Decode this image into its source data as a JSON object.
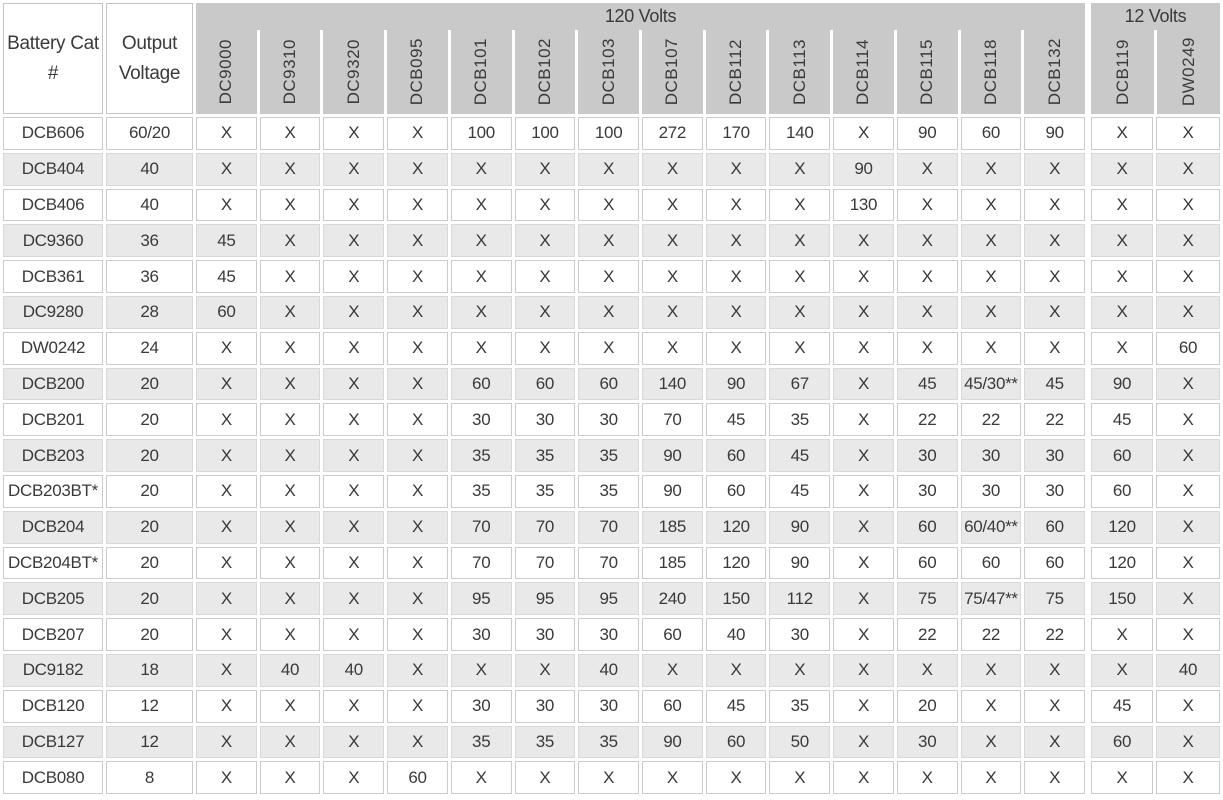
{
  "header": {
    "col1": "Battery Cat #",
    "col2": "Output Voltage",
    "groups": [
      {
        "label": "120 Volts",
        "columns": [
          "DC9000",
          "DC9310",
          "DC9320",
          "DCB095",
          "DCB101",
          "DCB102",
          "DCB103",
          "DCB107",
          "DCB112",
          "DCB113",
          "DCB114",
          "DCB115",
          "DCB118",
          "DCB132"
        ]
      },
      {
        "label": "12 Volts",
        "columns": [
          "DCB119",
          "DW0249"
        ]
      }
    ]
  },
  "rows": [
    {
      "cat": "DCB606",
      "voltage": "60/20",
      "values": [
        "X",
        "X",
        "X",
        "X",
        "100",
        "100",
        "100",
        "272",
        "170",
        "140",
        "X",
        "90",
        "60",
        "90",
        "X",
        "X"
      ]
    },
    {
      "cat": "DCB404",
      "voltage": "40",
      "values": [
        "X",
        "X",
        "X",
        "X",
        "X",
        "X",
        "X",
        "X",
        "X",
        "X",
        "90",
        "X",
        "X",
        "X",
        "X",
        "X"
      ]
    },
    {
      "cat": "DCB406",
      "voltage": "40",
      "values": [
        "X",
        "X",
        "X",
        "X",
        "X",
        "X",
        "X",
        "X",
        "X",
        "X",
        "130",
        "X",
        "X",
        "X",
        "X",
        "X"
      ]
    },
    {
      "cat": "DC9360",
      "voltage": "36",
      "values": [
        "45",
        "X",
        "X",
        "X",
        "X",
        "X",
        "X",
        "X",
        "X",
        "X",
        "X",
        "X",
        "X",
        "X",
        "X",
        "X"
      ]
    },
    {
      "cat": "DCB361",
      "voltage": "36",
      "values": [
        "45",
        "X",
        "X",
        "X",
        "X",
        "X",
        "X",
        "X",
        "X",
        "X",
        "X",
        "X",
        "X",
        "X",
        "X",
        "X"
      ]
    },
    {
      "cat": "DC9280",
      "voltage": "28",
      "values": [
        "60",
        "X",
        "X",
        "X",
        "X",
        "X",
        "X",
        "X",
        "X",
        "X",
        "X",
        "X",
        "X",
        "X",
        "X",
        "X"
      ]
    },
    {
      "cat": "DW0242",
      "voltage": "24",
      "values": [
        "X",
        "X",
        "X",
        "X",
        "X",
        "X",
        "X",
        "X",
        "X",
        "X",
        "X",
        "X",
        "X",
        "X",
        "X",
        "60"
      ]
    },
    {
      "cat": "DCB200",
      "voltage": "20",
      "values": [
        "X",
        "X",
        "X",
        "X",
        "60",
        "60",
        "60",
        "140",
        "90",
        "67",
        "X",
        "45",
        "45/30**",
        "45",
        "90",
        "X"
      ]
    },
    {
      "cat": "DCB201",
      "voltage": "20",
      "values": [
        "X",
        "X",
        "X",
        "X",
        "30",
        "30",
        "30",
        "70",
        "45",
        "35",
        "X",
        "22",
        "22",
        "22",
        "45",
        "X"
      ]
    },
    {
      "cat": "DCB203",
      "voltage": "20",
      "values": [
        "X",
        "X",
        "X",
        "X",
        "35",
        "35",
        "35",
        "90",
        "60",
        "45",
        "X",
        "30",
        "30",
        "30",
        "60",
        "X"
      ]
    },
    {
      "cat": "DCB203BT*",
      "voltage": "20",
      "values": [
        "X",
        "X",
        "X",
        "X",
        "35",
        "35",
        "35",
        "90",
        "60",
        "45",
        "X",
        "30",
        "30",
        "30",
        "60",
        "X"
      ]
    },
    {
      "cat": "DCB204",
      "voltage": "20",
      "values": [
        "X",
        "X",
        "X",
        "X",
        "70",
        "70",
        "70",
        "185",
        "120",
        "90",
        "X",
        "60",
        "60/40**",
        "60",
        "120",
        "X"
      ]
    },
    {
      "cat": "DCB204BT*",
      "voltage": "20",
      "values": [
        "X",
        "X",
        "X",
        "X",
        "70",
        "70",
        "70",
        "185",
        "120",
        "90",
        "X",
        "60",
        "60",
        "60",
        "120",
        "X"
      ]
    },
    {
      "cat": "DCB205",
      "voltage": "20",
      "values": [
        "X",
        "X",
        "X",
        "X",
        "95",
        "95",
        "95",
        "240",
        "150",
        "112",
        "X",
        "75",
        "75/47**",
        "75",
        "150",
        "X"
      ]
    },
    {
      "cat": "DCB207",
      "voltage": "20",
      "values": [
        "X",
        "X",
        "X",
        "X",
        "30",
        "30",
        "30",
        "60",
        "40",
        "30",
        "X",
        "22",
        "22",
        "22",
        "X",
        "X"
      ]
    },
    {
      "cat": "DC9182",
      "voltage": "18",
      "values": [
        "X",
        "40",
        "40",
        "X",
        "X",
        "X",
        "40",
        "X",
        "X",
        "X",
        "X",
        "X",
        "X",
        "X",
        "X",
        "40"
      ]
    },
    {
      "cat": "DCB120",
      "voltage": "12",
      "values": [
        "X",
        "X",
        "X",
        "X",
        "30",
        "30",
        "30",
        "60",
        "45",
        "35",
        "X",
        "20",
        "X",
        "X",
        "45",
        "X"
      ]
    },
    {
      "cat": "DCB127",
      "voltage": "12",
      "values": [
        "X",
        "X",
        "X",
        "X",
        "35",
        "35",
        "35",
        "90",
        "60",
        "50",
        "X",
        "30",
        "X",
        "X",
        "60",
        "X"
      ]
    },
    {
      "cat": "DCB080",
      "voltage": "8",
      "values": [
        "X",
        "X",
        "X",
        "60",
        "X",
        "X",
        "X",
        "X",
        "X",
        "X",
        "X",
        "X",
        "X",
        "X",
        "X",
        "X"
      ]
    }
  ],
  "colors": {
    "header_gray": "#c9c9c9",
    "stripe_gray": "#e9e9e9",
    "text": "#3a3a3a"
  }
}
